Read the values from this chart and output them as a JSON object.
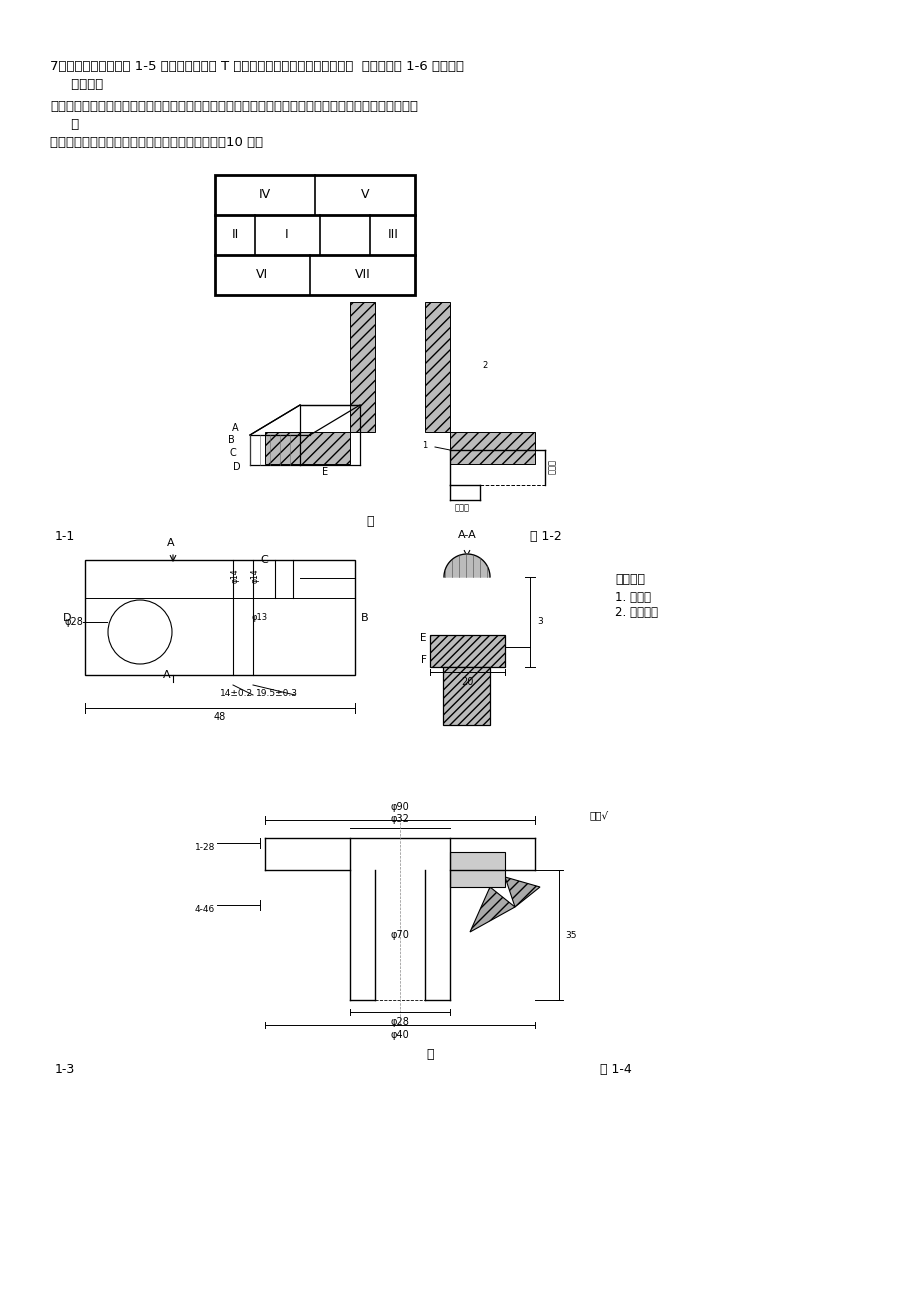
{
  "bg_color": "#ffffff",
  "text_color": "#000000",
  "page_width": 9.2,
  "page_height": 13.02,
  "dpi": 100,
  "title_text": "7、某厂生产一批如图 1-5 所示壁厚不等的 T 形梁铸钢件，铸后发生了翘曲变形  后改为如图 1-6 所示壁厚",
  "line2": "     均匀的焊",
  "line3": "接件，焊后仍产生了变形；试分析两种成形方法获得的制件产生变形的主要原因并判断变形方向（用虚线",
  "line4": "     表",
  "line5": "示）。为减小铸造变形，试重新设计铸件结构。（10 分）",
  "caption_fig": "图",
  "label_11": "1-1",
  "label_12": "图 1-2",
  "caption_fig2": "图",
  "label_13": "1-3",
  "label_14": "图 1-4",
  "tech_req_title": "技术要求",
  "tech_req_1": "1. 去毛刺",
  "tech_req_2": "2. 表面发蓝",
  "roman_IV": "IV",
  "roman_V": "V",
  "roman_II": "II",
  "roman_I": "I",
  "roman_III": "III",
  "roman_VI": "VI",
  "roman_VII": "VII",
  "dim_phi28": "φ28",
  "dim_phi14a": "φ14",
  "dim_phi14b": "φ14",
  "dim_phi13": "φ13",
  "dim_14pm02": "14±0.2",
  "dim_195pm03": "19.5±0.3",
  "dim_48": "48",
  "dim_20": "20",
  "label_A": "A",
  "label_AA": "A-A",
  "label_B": "B",
  "label_C": "C",
  "label_D": "D",
  "label_E": "E",
  "label_F": "F",
  "dim_phi90": "φ90",
  "dim_phi32": "φ32",
  "dim_phi70": "φ70",
  "dim_phi28b": "φ28",
  "dim_phi40": "φ40",
  "note_quanbu": "全部√"
}
